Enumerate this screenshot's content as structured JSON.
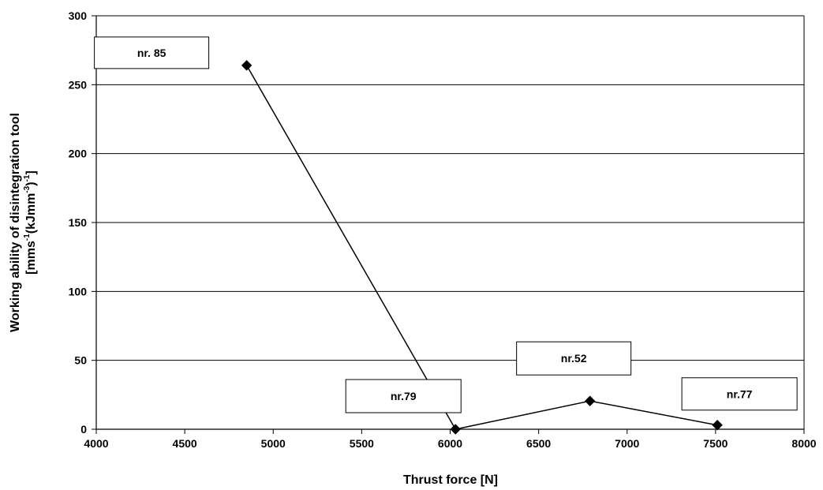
{
  "chart_data": {
    "type": "line",
    "xlabel": "Thrust force [N]",
    "ylabel_line1": "Working ability of disintegration tool",
    "ylabel_line2": {
      "parts": [
        "[mms",
        "-1",
        "(kJmm",
        "-3",
        ")",
        "-1",
        "]"
      ]
    },
    "xlim": [
      4000,
      8000
    ],
    "ylim": [
      0,
      300
    ],
    "xticks": [
      4000,
      4500,
      5000,
      5500,
      6000,
      6500,
      7000,
      7500,
      8000
    ],
    "yticks": [
      0,
      50,
      100,
      150,
      200,
      250,
      300
    ],
    "grid": {
      "horizontal": true,
      "vertical": false
    },
    "series": [
      {
        "x": [
          4850,
          6030,
          6790,
          7510
        ],
        "y": [
          264,
          0,
          20.5,
          3
        ],
        "marker": "diamond",
        "color": "#000000"
      }
    ],
    "annotations": [
      {
        "text": "nr. 85",
        "point_index": 0
      },
      {
        "text": "nr.79",
        "point_index": 1
      },
      {
        "text": "nr.52",
        "point_index": 2
      },
      {
        "text": "nr.77",
        "point_index": 3
      }
    ]
  }
}
